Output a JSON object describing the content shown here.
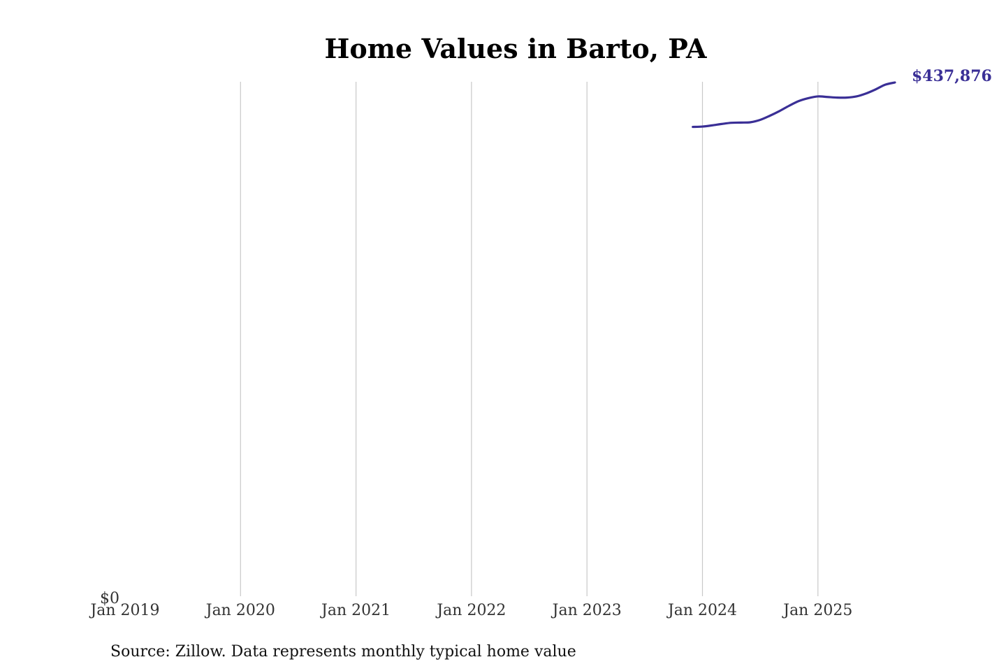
{
  "chart_data": {
    "type": "line",
    "title": "Home Values in Barto, PA",
    "xlabel": "",
    "ylabel": "",
    "x_ticks": [
      "Jan 2019",
      "Jan 2020",
      "Jan 2021",
      "Jan 2022",
      "Jan 2023",
      "Jan 2024",
      "Jan 2025"
    ],
    "y_ticks": [
      "$0"
    ],
    "xlim": [
      "2019-01",
      "2025-09"
    ],
    "ylim": [
      0,
      437876
    ],
    "grid": "vertical",
    "series": [
      {
        "color": "#3a2f96",
        "points": [
          {
            "x": "2023-12",
            "y": 400000
          },
          {
            "x": "2024-01",
            "y": 400300
          },
          {
            "x": "2024-02",
            "y": 401300
          },
          {
            "x": "2024-03",
            "y": 402500
          },
          {
            "x": "2024-04",
            "y": 403500
          },
          {
            "x": "2024-05",
            "y": 403700
          },
          {
            "x": "2024-06",
            "y": 404000
          },
          {
            "x": "2024-07",
            "y": 406000
          },
          {
            "x": "2024-08",
            "y": 409500
          },
          {
            "x": "2024-09",
            "y": 413500
          },
          {
            "x": "2024-10",
            "y": 418000
          },
          {
            "x": "2024-11",
            "y": 422000
          },
          {
            "x": "2024-12",
            "y": 424500
          },
          {
            "x": "2025-01",
            "y": 426000
          },
          {
            "x": "2025-02",
            "y": 425500
          },
          {
            "x": "2025-03",
            "y": 425000
          },
          {
            "x": "2025-04",
            "y": 425000
          },
          {
            "x": "2025-05",
            "y": 426000
          },
          {
            "x": "2025-06",
            "y": 428500
          },
          {
            "x": "2025-07",
            "y": 432000
          },
          {
            "x": "2025-08",
            "y": 436000
          },
          {
            "x": "2025-09",
            "y": 437876
          }
        ]
      }
    ],
    "end_label": "$437,876",
    "source": "Source: Zillow. Data represents monthly typical home value"
  }
}
